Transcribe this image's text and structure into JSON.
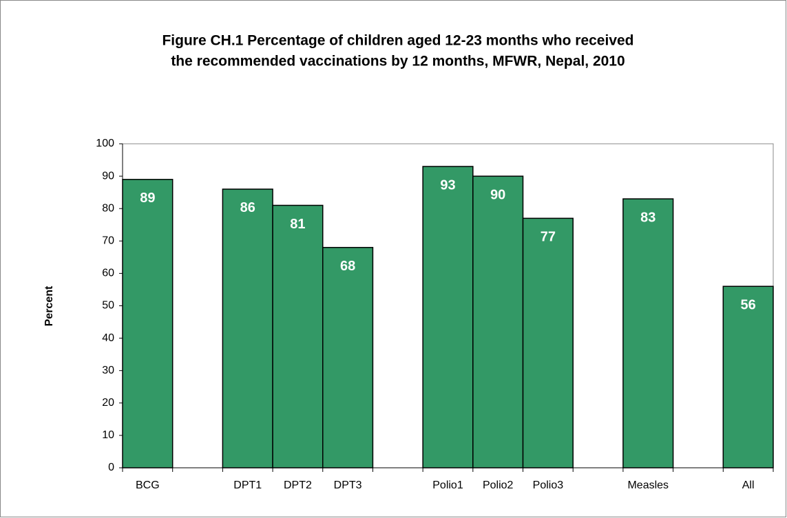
{
  "chart_data": {
    "type": "bar",
    "title": [
      "Figure CH.1 Percentage of children aged 12-23 months who received",
      "the recommended vaccinations by 12 months, MFWR, Nepal, 2010"
    ],
    "ylabel": "Percent",
    "categories": [
      "BCG",
      null,
      "DPT1",
      "DPT2",
      "DPT3",
      null,
      "Polio1",
      "Polio2",
      "Polio3",
      null,
      "Measles",
      null,
      "All"
    ],
    "values": [
      89,
      null,
      86,
      81,
      68,
      null,
      93,
      90,
      77,
      null,
      83,
      null,
      56
    ],
    "color": "#339966",
    "ylim": [
      0,
      100
    ],
    "yticks": [
      0,
      10,
      20,
      30,
      40,
      50,
      60,
      70,
      80,
      90,
      100
    ],
    "grid": false
  }
}
